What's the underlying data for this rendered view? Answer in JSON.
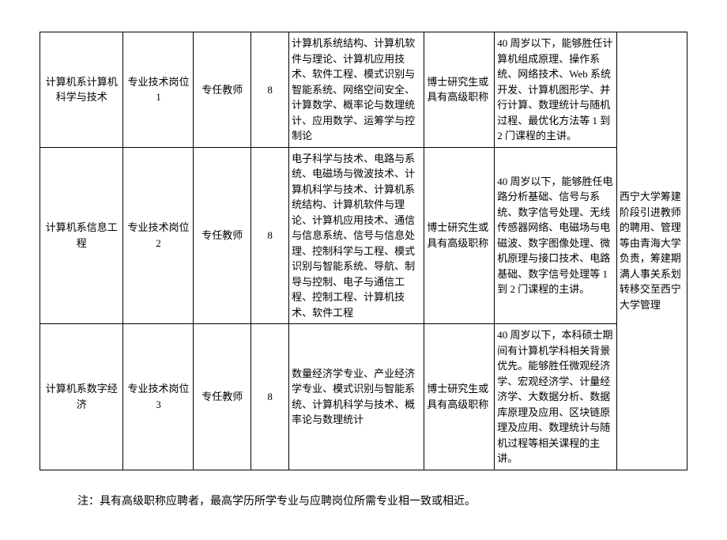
{
  "table": {
    "rows": [
      {
        "dept": "计算机系计算机科学与技术",
        "post": "专业技术岗位 1",
        "type": "专任教师",
        "num": "8",
        "major": "计算机系统结构、计算机软件与理论、计算机应用技术、软件工程、模式识别与智能系统、网络空间安全、计算数学、概率论与数理统计、应用数学、运筹学与控制论",
        "edu": "博士研究生或具有高级职称",
        "req": "40 周岁以下，能够胜任计算机组成原理、操作系统、网络技术、Web 系统开发、计算机图形学、并行计算、数理统计与随机过程、最优化方法等 1 到 2 门课程的主讲。"
      },
      {
        "dept": "计算机系信息工程",
        "post": "专业技术岗位 2",
        "type": "专任教师",
        "num": "8",
        "major": "电子科学与技术、电路与系统、电磁场与微波技术、计算机科学与技术、计算机系统结构、计算机软件与理论、计算机应用技术、通信与信息系统、信号与信息处理、控制科学与工程、模式识别与智能系统、导航、制导与控制、电子与通信工程、控制工程、计算机技术、软件工程",
        "edu": "博士研究生或具有高级职称",
        "req": "40 周岁以下，能够胜任电路分析基础、信号与系统、数字信号处理、无线传感器网络、电磁场与电磁波、数字图像处理、微机原理与接口技术、电路基础、数字信号处理等 1 到 2 门课程的主讲。"
      },
      {
        "dept": "计算机系数字经济",
        "post": "专业技术岗位 3",
        "type": "专任教师",
        "num": "8",
        "major": "数量经济学专业、产业经济学专业、模式识别与智能系统、计算机科学与技术、概率论与数理统计",
        "edu": "博士研究生或具有高级职称",
        "req": "40 周岁以下，本科硕士期间有计算机学科相关背景优先。能够胜任微观经济学、宏观经济学、计量经济学、大数据分析、数据库原理及应用、区块链原理及应用、数理统计与随机过程等相关课程的主讲。"
      }
    ],
    "note_merged": "西宁大学筹建阶段引进教师的聘用、管理等由青海大学负责，筹建期满人事关系划转移交至西宁大学管理"
  },
  "footnote": "注：具有高级职称应聘者，最高学历所学专业与应聘岗位所需专业相一致或相近。"
}
